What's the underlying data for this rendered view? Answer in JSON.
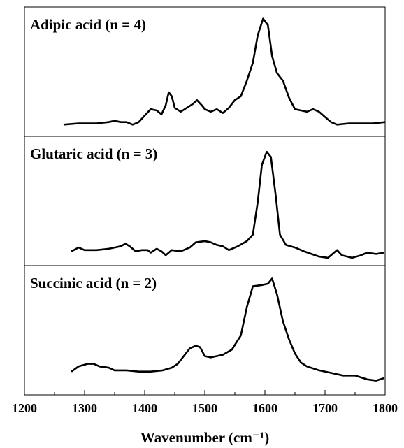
{
  "chart_data": [
    {
      "type": "line",
      "title": "Adipic acid (n = 4)",
      "color": "#000000",
      "ylim": [
        0,
        1
      ],
      "x": [
        1265,
        1290,
        1320,
        1340,
        1350,
        1360,
        1370,
        1380,
        1390,
        1400,
        1410,
        1420,
        1428,
        1435,
        1440,
        1445,
        1450,
        1460,
        1470,
        1480,
        1487,
        1495,
        1500,
        1510,
        1520,
        1530,
        1540,
        1550,
        1560,
        1570,
        1580,
        1588,
        1597,
        1605,
        1612,
        1620,
        1630,
        1640,
        1650,
        1660,
        1670,
        1680,
        1690,
        1700,
        1710,
        1720,
        1740,
        1760,
        1780,
        1800
      ],
      "values": [
        0.09,
        0.1,
        0.1,
        0.11,
        0.12,
        0.11,
        0.11,
        0.09,
        0.11,
        0.16,
        0.21,
        0.2,
        0.17,
        0.24,
        0.34,
        0.31,
        0.22,
        0.19,
        0.22,
        0.25,
        0.28,
        0.24,
        0.21,
        0.19,
        0.21,
        0.18,
        0.22,
        0.28,
        0.31,
        0.43,
        0.57,
        0.78,
        0.91,
        0.86,
        0.62,
        0.49,
        0.43,
        0.3,
        0.21,
        0.2,
        0.19,
        0.21,
        0.19,
        0.15,
        0.11,
        0.09,
        0.1,
        0.1,
        0.1,
        0.11
      ]
    },
    {
      "type": "line",
      "title": "Glutaric acid (n = 3)",
      "color": "#000000",
      "ylim": [
        0,
        1
      ],
      "x": [
        1278,
        1290,
        1300,
        1320,
        1340,
        1350,
        1360,
        1368,
        1375,
        1385,
        1395,
        1405,
        1410,
        1420,
        1428,
        1435,
        1445,
        1460,
        1475,
        1485,
        1500,
        1510,
        1520,
        1530,
        1540,
        1555,
        1570,
        1580,
        1588,
        1595,
        1603,
        1610,
        1618,
        1625,
        1635,
        1650,
        1665,
        1690,
        1705,
        1715,
        1720,
        1728,
        1745,
        1760,
        1770,
        1785,
        1798
      ],
      "values": [
        0.11,
        0.14,
        0.12,
        0.12,
        0.13,
        0.14,
        0.15,
        0.17,
        0.15,
        0.11,
        0.12,
        0.12,
        0.1,
        0.13,
        0.11,
        0.08,
        0.12,
        0.11,
        0.14,
        0.18,
        0.19,
        0.18,
        0.16,
        0.15,
        0.12,
        0.15,
        0.19,
        0.24,
        0.49,
        0.78,
        0.88,
        0.84,
        0.54,
        0.24,
        0.16,
        0.14,
        0.11,
        0.07,
        0.06,
        0.1,
        0.12,
        0.08,
        0.06,
        0.08,
        0.1,
        0.09,
        0.1
      ]
    },
    {
      "type": "line",
      "title": "Succinic acid (n = 2)",
      "color": "#000000",
      "ylim": [
        0,
        1
      ],
      "x": [
        1278,
        1290,
        1305,
        1315,
        1325,
        1340,
        1350,
        1370,
        1390,
        1410,
        1430,
        1445,
        1455,
        1465,
        1475,
        1485,
        1492,
        1500,
        1510,
        1530,
        1545,
        1560,
        1570,
        1580,
        1595,
        1605,
        1612,
        1620,
        1630,
        1640,
        1650,
        1660,
        1670,
        1690,
        1710,
        1730,
        1750,
        1770,
        1785,
        1798
      ],
      "values": [
        0.18,
        0.22,
        0.24,
        0.24,
        0.22,
        0.21,
        0.19,
        0.19,
        0.18,
        0.18,
        0.19,
        0.21,
        0.24,
        0.3,
        0.36,
        0.38,
        0.37,
        0.3,
        0.29,
        0.31,
        0.35,
        0.46,
        0.68,
        0.84,
        0.85,
        0.86,
        0.9,
        0.78,
        0.57,
        0.43,
        0.32,
        0.25,
        0.22,
        0.19,
        0.17,
        0.15,
        0.15,
        0.12,
        0.11,
        0.13
      ],
      "xlabel": "Wavenumber (cm⁻¹)",
      "xlim": [
        1200,
        1800
      ],
      "xticks": [
        1200,
        1300,
        1400,
        1500,
        1600,
        1700,
        1800
      ],
      "xminor_ticks": [
        1250,
        1350,
        1450,
        1550,
        1650,
        1750
      ]
    }
  ]
}
